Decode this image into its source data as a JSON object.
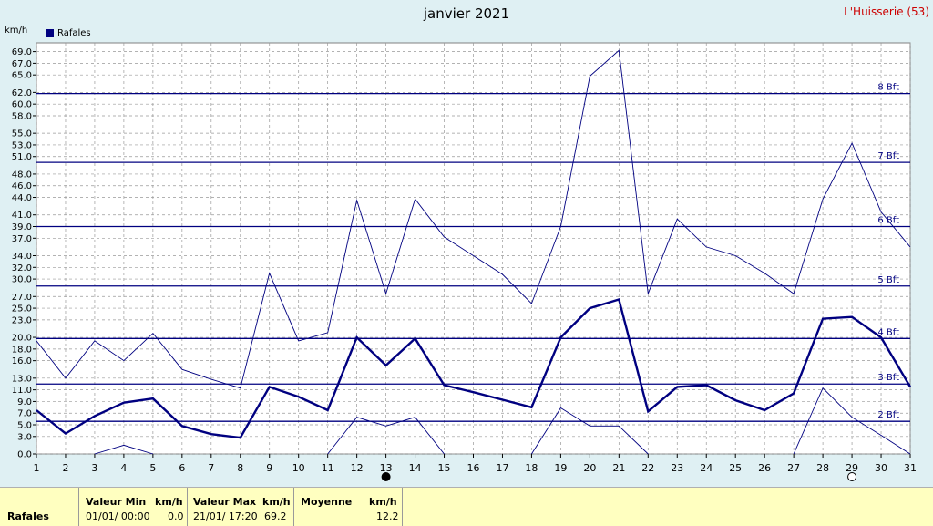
{
  "header": {
    "title": "janvier 2021",
    "station": "L'Huisserie (53)",
    "unit": "km/h",
    "legend_label": "Rafales"
  },
  "chart_data": {
    "type": "line",
    "title": "janvier 2021",
    "ylabel": "km/h",
    "ylim": [
      0,
      70.5
    ],
    "xlim": [
      1,
      31
    ],
    "x": [
      1,
      2,
      3,
      4,
      5,
      6,
      7,
      8,
      9,
      10,
      11,
      12,
      13,
      14,
      15,
      16,
      17,
      18,
      19,
      20,
      21,
      22,
      23,
      24,
      25,
      26,
      27,
      28,
      29,
      30,
      31
    ],
    "yticks": [
      "0.0",
      "3.0",
      "5.0",
      "7.0",
      "9.0",
      "11.0",
      "13.0",
      "16.0",
      "18.0",
      "20.0",
      "23.0",
      "25.0",
      "27.0",
      "30.0",
      "32.0",
      "34.0",
      "37.0",
      "39.0",
      "41.0",
      "44.0",
      "46.0",
      "48.0",
      "51.0",
      "53.0",
      "55.0",
      "58.0",
      "60.0",
      "62.0",
      "65.0",
      "67.0",
      "69.0"
    ],
    "beaufort": [
      {
        "label": "2 Bft",
        "value": 5.6
      },
      {
        "label": "3 Bft",
        "value": 12.0
      },
      {
        "label": "4 Bft",
        "value": 19.8
      },
      {
        "label": "5 Bft",
        "value": 28.8
      },
      {
        "label": "6 Bft",
        "value": 39.0
      },
      {
        "label": "7 Bft",
        "value": 50.0
      },
      {
        "label": "8 Bft",
        "value": 61.8
      }
    ],
    "series": [
      {
        "name": "Rafales",
        "role": "mean",
        "color": "#000080",
        "values": [
          7.5,
          3.5,
          6.5,
          8.8,
          9.5,
          4.8,
          3.4,
          2.8,
          11.5,
          9.8,
          7.5,
          20.0,
          15.2,
          19.8,
          11.8,
          10.6,
          9.3,
          8.0,
          20.0,
          25.0,
          26.5,
          7.3,
          11.5,
          11.8,
          9.2,
          7.5,
          10.4,
          23.2,
          23.5,
          20.0,
          11.5
        ]
      },
      {
        "role": "max",
        "color": "#000080",
        "values": [
          19.4,
          13.0,
          19.4,
          16.0,
          20.7,
          14.5,
          12.8,
          11.3,
          31.0,
          19.4,
          20.8,
          43.5,
          27.5,
          43.7,
          37.2,
          34.0,
          30.8,
          25.8,
          39.0,
          64.8,
          69.2,
          27.5,
          40.3,
          35.5,
          34.0,
          31.0,
          27.5,
          43.7,
          53.3,
          41.5,
          35.5
        ]
      },
      {
        "role": "min",
        "color": "#000080",
        "values": [
          null,
          null,
          0.0,
          1.5,
          0.0,
          null,
          null,
          null,
          null,
          null,
          0.0,
          6.3,
          4.8,
          6.3,
          0.0,
          null,
          null,
          0.0,
          7.9,
          4.8,
          4.8,
          0.0,
          null,
          null,
          null,
          null,
          0.0,
          11.3,
          6.3,
          3.2,
          0.0
        ]
      }
    ],
    "moon_phases": [
      {
        "day": 13,
        "phase": "new"
      },
      {
        "day": 29,
        "phase": "full"
      }
    ],
    "grid": true,
    "legend_position": "top-left"
  },
  "footer": {
    "row_label": "Rafales",
    "min_label": "Valeur Min",
    "min_unit": "km/h",
    "min_date": "01/01/  00:00",
    "min_value": "0.0",
    "max_label": "Valeur Max",
    "max_unit": "km/h",
    "max_date": "21/01/  17:20",
    "max_value": "69.2",
    "avg_label": "Moyenne",
    "avg_unit": "km/h",
    "avg_value": "12.2"
  }
}
